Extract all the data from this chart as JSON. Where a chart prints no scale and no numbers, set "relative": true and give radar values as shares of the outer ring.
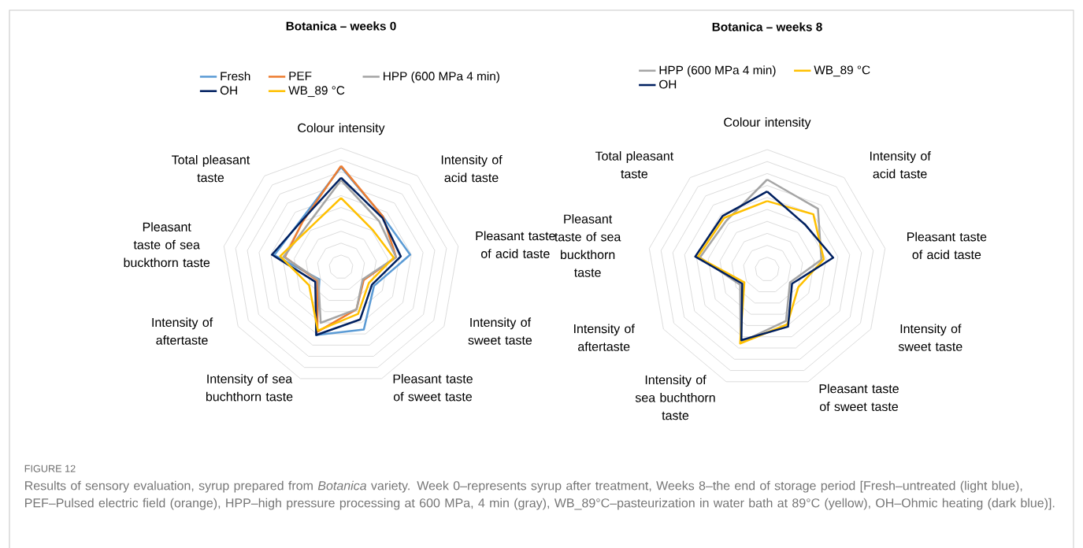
{
  "chart_data": [
    {
      "type": "radar",
      "title": "Botanica – weeks 0",
      "relative": true,
      "grid": true,
      "legend": "top",
      "categories": [
        "Colour intensity",
        "Intensity of acid taste",
        "Pleasant taste of acid taste",
        "Intensity of sweet taste",
        "Pleasant taste of sweet taste",
        "Intensity of sea buchthorn taste",
        "Intensity of aftertaste",
        "Pleasant taste of sea buckthorn taste",
        "Total pleasant taste"
      ],
      "series": [
        {
          "name": "Fresh",
          "color": "#5b9bd5",
          "values": [
            0.84,
            0.55,
            0.59,
            0.32,
            0.56,
            0.61,
            0.21,
            0.57,
            0.52
          ]
        },
        {
          "name": "PEF",
          "color": "#ed7d31",
          "values": [
            0.85,
            0.55,
            0.47,
            0.22,
            0.38,
            0.58,
            0.23,
            0.48,
            0.5
          ]
        },
        {
          "name": "HPP (600 MPa 4 min)",
          "color": "#a5a5a5",
          "values": [
            0.73,
            0.5,
            0.47,
            0.21,
            0.38,
            0.5,
            0.22,
            0.49,
            0.45
          ]
        },
        {
          "name": "OH",
          "color": "#002060",
          "values": [
            0.75,
            0.54,
            0.51,
            0.3,
            0.47,
            0.61,
            0.25,
            0.59,
            0.51
          ]
        },
        {
          "name": "WB_89 °C",
          "color": "#ffc000",
          "values": [
            0.58,
            0.41,
            0.45,
            0.27,
            0.42,
            0.57,
            0.31,
            0.52,
            0.42
          ]
        }
      ],
      "annotations": [
        "FIGURE 12",
        "Results of sensory evaluation, syrup prepared from *Botanica* variety. Week 0–represents syrup after treatment, Weeks 8–the end of storage period [Fresh–untreated (light blue), PEF–Pulsed electric field (orange), HPP–high pressure processing at 600 MPa, 4 min (gray), WB_89°C–pasteurization in water bath at 89°C (yellow), OH–Ohmic heating (dark blue)]."
      ]
    },
    {
      "type": "radar",
      "title": "Botanica – weeks 8",
      "relative": true,
      "grid": true,
      "legend": "top",
      "categories": [
        "Colour intensity",
        "Intensity of acid taste",
        "Pleasant taste of acid taste",
        "Intensity of sweet taste",
        "Pleasant taste of sweet taste",
        "Intensity of sea buchthorn taste",
        "Intensity of aftertaste",
        "Pleasant taste of sea buckthorn taste",
        "Total pleasant taste"
      ],
      "series": [
        {
          "name": "HPP (600 MPa 4 min)",
          "color": "#a5a5a5",
          "values": [
            0.75,
            0.66,
            0.46,
            0.22,
            0.46,
            0.65,
            0.26,
            0.57,
            0.53
          ]
        },
        {
          "name": "WB_89 °C",
          "color": "#ffc000",
          "values": [
            0.57,
            0.6,
            0.48,
            0.3,
            0.49,
            0.66,
            0.22,
            0.59,
            0.56
          ]
        },
        {
          "name": "OH",
          "color": "#002060",
          "values": [
            0.65,
            0.49,
            0.56,
            0.24,
            0.51,
            0.63,
            0.24,
            0.61,
            0.58
          ]
        }
      ]
    }
  ]
}
